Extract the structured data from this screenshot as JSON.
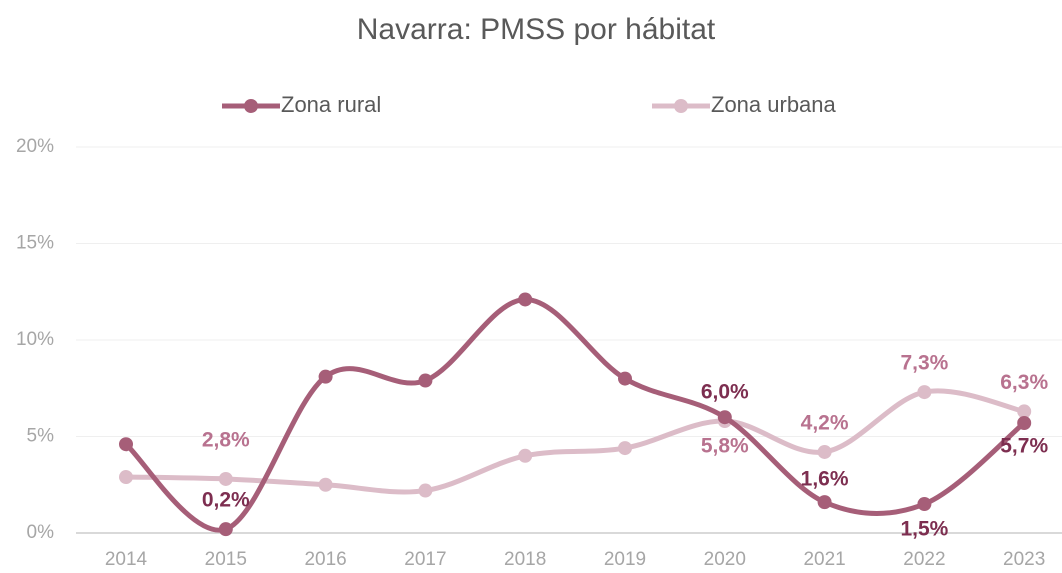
{
  "chart_data": {
    "type": "line",
    "title": "Navarra: PMSS por hábitat",
    "categories": [
      "2014",
      "2015",
      "2016",
      "2017",
      "2018",
      "2019",
      "2020",
      "2021",
      "2022",
      "2023"
    ],
    "series": [
      {
        "name": "Zona rural",
        "color": "#a65e78",
        "label_color": "#7d2e50",
        "values": [
          4.6,
          0.2,
          8.1,
          7.9,
          12.1,
          8.0,
          6.0,
          1.6,
          1.5,
          5.7
        ],
        "value_labels": [
          null,
          "0,2%",
          null,
          null,
          null,
          null,
          "6,0%",
          "1,6%",
          "1,5%",
          "5,7%"
        ]
      },
      {
        "name": "Zona urbana",
        "color": "#dcbcc8",
        "label_color": "#b8728f",
        "values": [
          2.9,
          2.8,
          2.5,
          2.2,
          4.0,
          4.4,
          5.8,
          4.2,
          7.3,
          6.3
        ],
        "value_labels": [
          null,
          "2,8%",
          null,
          null,
          null,
          null,
          "5,8%",
          "4,2%",
          "7,3%",
          "6,3%"
        ]
      }
    ],
    "ylim": [
      0,
      20
    ],
    "yticks": [
      {
        "value": 0,
        "label": "0%"
      },
      {
        "value": 5,
        "label": "5%"
      },
      {
        "value": 10,
        "label": "10%"
      },
      {
        "value": 15,
        "label": "15%"
      },
      {
        "value": 20,
        "label": "20%"
      }
    ],
    "grid": true,
    "legend": "top",
    "smooth": true
  }
}
